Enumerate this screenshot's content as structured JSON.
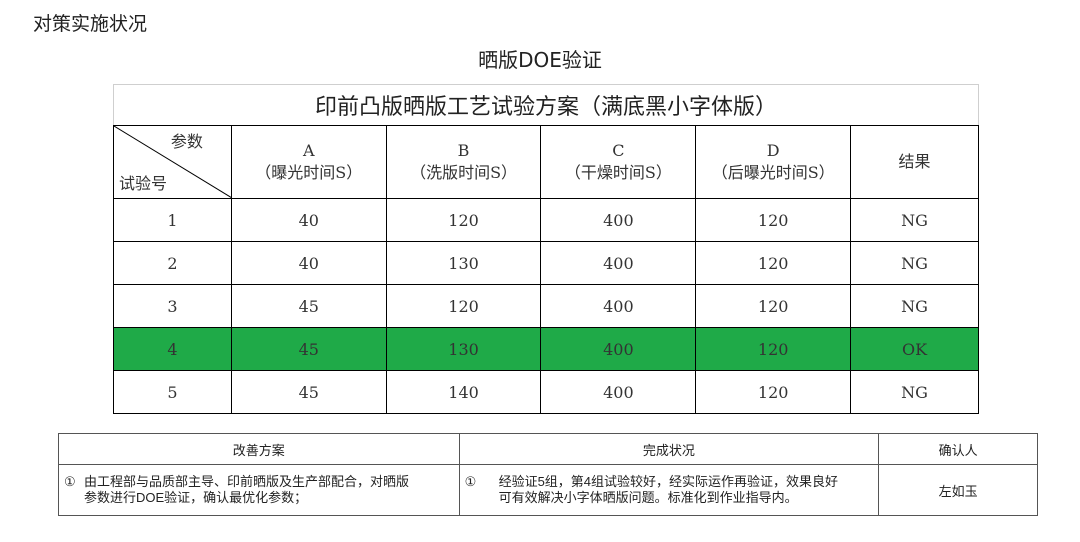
{
  "page": {
    "heading": "对策实施状况",
    "section_title": "晒版DOE验证"
  },
  "doe_table": {
    "title": "印前凸版晒版工艺试验方案（满底黑小字体版）",
    "diag_top": "参数",
    "diag_bottom": "试验号",
    "columns": [
      {
        "letter": "A",
        "desc": "（曝光时间S）"
      },
      {
        "letter": "B",
        "desc": "（洗版时间S）"
      },
      {
        "letter": "C",
        "desc": "（干燥时间S）"
      },
      {
        "letter": "D",
        "desc": "（后曝光时间S）"
      }
    ],
    "result_header": "结果",
    "rows": [
      {
        "no": "1",
        "a": "40",
        "b": "120",
        "c": "400",
        "d": "120",
        "result": "NG"
      },
      {
        "no": "2",
        "a": "40",
        "b": "130",
        "c": "400",
        "d": "120",
        "result": "NG"
      },
      {
        "no": "3",
        "a": "45",
        "b": "120",
        "c": "400",
        "d": "120",
        "result": "NG"
      },
      {
        "no": "4",
        "a": "45",
        "b": "130",
        "c": "400",
        "d": "120",
        "result": "OK"
      },
      {
        "no": "5",
        "a": "45",
        "b": "140",
        "c": "400",
        "d": "120",
        "result": "NG"
      }
    ],
    "highlight_row": "4",
    "highlight_color": "#1faa48"
  },
  "summary_table": {
    "headers": [
      "改善方案",
      "完成状况",
      "确认人"
    ],
    "improvement_num": "①",
    "improvement_line1": "由工程部与品质部主导、印前晒版及生产部配合，对晒版",
    "improvement_line2": "参数进行DOE验证，确认最优化参数；",
    "status_num": "①",
    "status_line1": "经验证5组，第4组试验较好，经实际运作再验证，效果良好",
    "status_line2": "可有效解决小字体晒版问题。标准化到作业指导内。",
    "confirmer": "左如玉"
  }
}
